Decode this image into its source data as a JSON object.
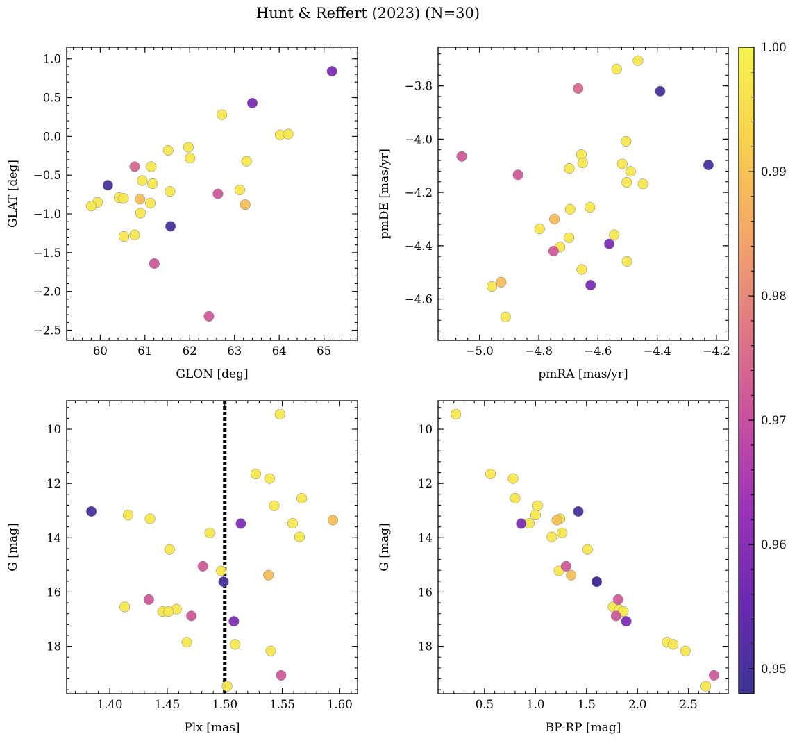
{
  "figure_title": "Hunt & Reffert (2023) (N=30)",
  "chart_data": [
    {
      "id": "glon-glat",
      "type": "scatter",
      "title": "",
      "xlabel": "GLON [deg]",
      "ylabel": "GLAT [deg]",
      "xlim": [
        59.25,
        65.75
      ],
      "ylim": [
        -2.63,
        1.15
      ],
      "xticks": [
        60,
        61,
        62,
        63,
        64,
        65
      ],
      "xtick_labels": [
        "60",
        "61",
        "62",
        "63",
        "64",
        "65"
      ],
      "yticks": [
        1.0,
        0.5,
        0.0,
        -0.5,
        -1.0,
        -1.5,
        -2.0,
        -2.5
      ],
      "ytick_labels": [
        "1.0",
        "0.5",
        "0.0",
        "−0.5",
        "−1.0",
        "−1.5",
        "−2.0",
        "−2.5"
      ],
      "points": [
        {
          "x": 65.18,
          "y": 0.84,
          "c": 0.958
        },
        {
          "x": 63.4,
          "y": 0.43,
          "c": 0.958
        },
        {
          "x": 62.72,
          "y": 0.28,
          "c": 0.997
        },
        {
          "x": 64.02,
          "y": 0.02,
          "c": 0.997
        },
        {
          "x": 64.2,
          "y": 0.03,
          "c": 0.997
        },
        {
          "x": 61.52,
          "y": -0.18,
          "c": 0.997
        },
        {
          "x": 61.97,
          "y": -0.14,
          "c": 0.997
        },
        {
          "x": 62.01,
          "y": -0.28,
          "c": 0.997
        },
        {
          "x": 63.27,
          "y": -0.32,
          "c": 0.997
        },
        {
          "x": 60.77,
          "y": -0.39,
          "c": 0.974
        },
        {
          "x": 61.14,
          "y": -0.39,
          "c": 0.997
        },
        {
          "x": 60.17,
          "y": -0.63,
          "c": 0.95
        },
        {
          "x": 60.94,
          "y": -0.57,
          "c": 0.997
        },
        {
          "x": 61.17,
          "y": -0.61,
          "c": 0.997
        },
        {
          "x": 61.56,
          "y": -0.71,
          "c": 0.997
        },
        {
          "x": 62.63,
          "y": -0.74,
          "c": 0.972
        },
        {
          "x": 63.12,
          "y": -0.69,
          "c": 0.997
        },
        {
          "x": 60.42,
          "y": -0.79,
          "c": 0.997
        },
        {
          "x": 60.52,
          "y": -0.8,
          "c": 0.997
        },
        {
          "x": 60.89,
          "y": -0.81,
          "c": 0.989
        },
        {
          "x": 59.94,
          "y": -0.85,
          "c": 0.997
        },
        {
          "x": 61.12,
          "y": -0.86,
          "c": 0.997
        },
        {
          "x": 63.24,
          "y": -0.88,
          "c": 0.989
        },
        {
          "x": 59.8,
          "y": -0.9,
          "c": 0.997
        },
        {
          "x": 60.9,
          "y": -0.99,
          "c": 0.997
        },
        {
          "x": 61.57,
          "y": -1.16,
          "c": 0.95
        },
        {
          "x": 60.53,
          "y": -1.29,
          "c": 0.997
        },
        {
          "x": 60.77,
          "y": -1.27,
          "c": 0.997
        },
        {
          "x": 61.21,
          "y": -1.64,
          "c": 0.972
        },
        {
          "x": 62.43,
          "y": -2.32,
          "c": 0.972
        }
      ]
    },
    {
      "id": "pmra-pmde",
      "type": "scatter",
      "title": "",
      "xlabel": "pmRA [mas/yr]",
      "ylabel": "pmDE [mas/yr]",
      "xlim": [
        -5.14,
        -4.16
      ],
      "ylim": [
        -4.755,
        -3.655
      ],
      "xticks": [
        -5.0,
        -4.8,
        -4.6,
        -4.4,
        -4.2
      ],
      "xtick_labels": [
        "−5.0",
        "−4.8",
        "−4.6",
        "−4.4",
        "−4.2"
      ],
      "yticks": [
        -3.8,
        -4.0,
        -4.2,
        -4.4,
        -4.6
      ],
      "ytick_labels": [
        "−3.8",
        "−4.0",
        "−4.2",
        "−4.4",
        "−4.6"
      ],
      "points": [
        {
          "x": -4.465,
          "y": -3.705,
          "c": 0.997
        },
        {
          "x": -4.537,
          "y": -3.737,
          "c": 0.997
        },
        {
          "x": -4.667,
          "y": -3.81,
          "c": 0.975
        },
        {
          "x": -4.39,
          "y": -3.82,
          "c": 0.95
        },
        {
          "x": -4.505,
          "y": -4.008,
          "c": 0.997
        },
        {
          "x": -5.06,
          "y": -4.065,
          "c": 0.972
        },
        {
          "x": -4.656,
          "y": -4.058,
          "c": 0.997
        },
        {
          "x": -4.652,
          "y": -4.089,
          "c": 0.997
        },
        {
          "x": -4.518,
          "y": -4.093,
          "c": 0.997
        },
        {
          "x": -4.227,
          "y": -4.097,
          "c": 0.95
        },
        {
          "x": -4.697,
          "y": -4.11,
          "c": 0.997
        },
        {
          "x": -4.49,
          "y": -4.121,
          "c": 0.997
        },
        {
          "x": -4.87,
          "y": -4.134,
          "c": 0.972
        },
        {
          "x": -4.503,
          "y": -4.162,
          "c": 0.997
        },
        {
          "x": -4.448,
          "y": -4.168,
          "c": 0.997
        },
        {
          "x": -4.627,
          "y": -4.256,
          "c": 0.997
        },
        {
          "x": -4.694,
          "y": -4.263,
          "c": 0.997
        },
        {
          "x": -4.747,
          "y": -4.3,
          "c": 0.989
        },
        {
          "x": -4.797,
          "y": -4.337,
          "c": 0.997
        },
        {
          "x": -4.545,
          "y": -4.359,
          "c": 0.997
        },
        {
          "x": -4.698,
          "y": -4.37,
          "c": 0.997
        },
        {
          "x": -4.562,
          "y": -4.393,
          "c": 0.958
        },
        {
          "x": -4.728,
          "y": -4.405,
          "c": 0.997
        },
        {
          "x": -4.75,
          "y": -4.42,
          "c": 0.972
        },
        {
          "x": -4.502,
          "y": -4.459,
          "c": 0.997
        },
        {
          "x": -4.655,
          "y": -4.489,
          "c": 0.997
        },
        {
          "x": -4.927,
          "y": -4.537,
          "c": 0.989
        },
        {
          "x": -4.625,
          "y": -4.548,
          "c": 0.958
        },
        {
          "x": -4.958,
          "y": -4.553,
          "c": 0.997
        },
        {
          "x": -4.912,
          "y": -4.667,
          "c": 0.997
        }
      ]
    },
    {
      "id": "plx-g",
      "type": "scatter",
      "title": "",
      "xlabel": "Plx [mas]",
      "ylabel": "G [mag]",
      "xlim": [
        1.3625,
        1.6155
      ],
      "ylim": [
        19.75,
        8.95
      ],
      "xticks": [
        1.4,
        1.45,
        1.5,
        1.55,
        1.6
      ],
      "xtick_labels": [
        "1.40",
        "1.45",
        "1.50",
        "1.55",
        "1.60"
      ],
      "yticks": [
        10,
        12,
        14,
        16,
        18
      ],
      "ytick_labels": [
        "10",
        "12",
        "14",
        "16",
        "18"
      ],
      "vline": {
        "x": 1.5,
        "style": "dotted"
      },
      "points": [
        {
          "x": 1.548,
          "y": 9.45,
          "c": 0.997
        },
        {
          "x": 1.527,
          "y": 11.65,
          "c": 0.997
        },
        {
          "x": 1.539,
          "y": 11.82,
          "c": 0.997
        },
        {
          "x": 1.567,
          "y": 12.55,
          "c": 0.997
        },
        {
          "x": 1.543,
          "y": 12.82,
          "c": 0.997
        },
        {
          "x": 1.384,
          "y": 13.03,
          "c": 0.95
        },
        {
          "x": 1.416,
          "y": 13.16,
          "c": 0.997
        },
        {
          "x": 1.435,
          "y": 13.3,
          "c": 0.997
        },
        {
          "x": 1.594,
          "y": 13.35,
          "c": 0.989
        },
        {
          "x": 1.559,
          "y": 13.47,
          "c": 0.997
        },
        {
          "x": 1.514,
          "y": 13.48,
          "c": 0.958
        },
        {
          "x": 1.487,
          "y": 13.82,
          "c": 0.997
        },
        {
          "x": 1.565,
          "y": 13.97,
          "c": 0.997
        },
        {
          "x": 1.452,
          "y": 14.43,
          "c": 0.997
        },
        {
          "x": 1.481,
          "y": 15.05,
          "c": 0.972
        },
        {
          "x": 1.497,
          "y": 15.22,
          "c": 0.997
        },
        {
          "x": 1.538,
          "y": 15.38,
          "c": 0.989
        },
        {
          "x": 1.499,
          "y": 15.62,
          "c": 0.95
        },
        {
          "x": 1.434,
          "y": 16.28,
          "c": 0.972
        },
        {
          "x": 1.413,
          "y": 16.55,
          "c": 0.997
        },
        {
          "x": 1.458,
          "y": 16.63,
          "c": 0.997
        },
        {
          "x": 1.446,
          "y": 16.72,
          "c": 0.997
        },
        {
          "x": 1.451,
          "y": 16.72,
          "c": 0.997
        },
        {
          "x": 1.471,
          "y": 16.88,
          "c": 0.972
        },
        {
          "x": 1.508,
          "y": 17.08,
          "c": 0.958
        },
        {
          "x": 1.467,
          "y": 17.85,
          "c": 0.997
        },
        {
          "x": 1.509,
          "y": 17.93,
          "c": 0.997
        },
        {
          "x": 1.54,
          "y": 18.17,
          "c": 0.997
        },
        {
          "x": 1.549,
          "y": 19.07,
          "c": 0.972
        },
        {
          "x": 1.502,
          "y": 19.47,
          "c": 0.997
        }
      ]
    },
    {
      "id": "bprp-g",
      "type": "scatter",
      "title": "",
      "xlabel": "BP-RP [mag]",
      "ylabel": "G [mag]",
      "xlim": [
        0.045,
        2.89
      ],
      "ylim": [
        19.75,
        8.95
      ],
      "xticks": [
        0.5,
        1.0,
        1.5,
        2.0,
        2.5
      ],
      "xtick_labels": [
        "0.5",
        "1.0",
        "1.5",
        "2.0",
        "2.5"
      ],
      "yticks": [
        10,
        12,
        14,
        16,
        18
      ],
      "ytick_labels": [
        "10",
        "12",
        "14",
        "16",
        "18"
      ],
      "points": [
        {
          "x": 0.22,
          "y": 9.45,
          "c": 0.997
        },
        {
          "x": 0.56,
          "y": 11.65,
          "c": 0.997
        },
        {
          "x": 0.78,
          "y": 11.82,
          "c": 0.997
        },
        {
          "x": 0.8,
          "y": 12.55,
          "c": 0.997
        },
        {
          "x": 1.02,
          "y": 12.82,
          "c": 0.997
        },
        {
          "x": 1.42,
          "y": 13.03,
          "c": 0.95
        },
        {
          "x": 1.0,
          "y": 13.16,
          "c": 0.997
        },
        {
          "x": 1.24,
          "y": 13.3,
          "c": 0.997
        },
        {
          "x": 1.21,
          "y": 13.35,
          "c": 0.989
        },
        {
          "x": 0.86,
          "y": 13.48,
          "c": 0.958
        },
        {
          "x": 0.94,
          "y": 13.47,
          "c": 0.997
        },
        {
          "x": 1.26,
          "y": 13.82,
          "c": 0.997
        },
        {
          "x": 1.16,
          "y": 13.97,
          "c": 0.997
        },
        {
          "x": 1.51,
          "y": 14.43,
          "c": 0.997
        },
        {
          "x": 1.3,
          "y": 15.05,
          "c": 0.972
        },
        {
          "x": 1.23,
          "y": 15.22,
          "c": 0.997
        },
        {
          "x": 1.35,
          "y": 15.38,
          "c": 0.989
        },
        {
          "x": 1.6,
          "y": 15.62,
          "c": 0.95
        },
        {
          "x": 1.81,
          "y": 16.28,
          "c": 0.972
        },
        {
          "x": 1.76,
          "y": 16.55,
          "c": 0.997
        },
        {
          "x": 1.82,
          "y": 16.65,
          "c": 0.997
        },
        {
          "x": 1.86,
          "y": 16.72,
          "c": 0.997
        },
        {
          "x": 1.79,
          "y": 16.88,
          "c": 0.972
        },
        {
          "x": 1.89,
          "y": 17.08,
          "c": 0.958
        },
        {
          "x": 2.29,
          "y": 17.85,
          "c": 0.997
        },
        {
          "x": 2.35,
          "y": 17.93,
          "c": 0.997
        },
        {
          "x": 2.47,
          "y": 18.17,
          "c": 0.997
        },
        {
          "x": 2.75,
          "y": 19.07,
          "c": 0.972
        },
        {
          "x": 2.67,
          "y": 19.47,
          "c": 0.997
        },
        {
          "x": 1.6,
          "y": 15.62,
          "c": 0.95
        }
      ]
    }
  ],
  "colorbar": {
    "range": [
      0.948,
      1.0
    ],
    "ticks": [
      0.95,
      0.96,
      0.97,
      0.98,
      0.99,
      1.0
    ],
    "tick_labels": [
      "0.95",
      "0.96",
      "0.97",
      "0.98",
      "0.99",
      "1.00"
    ],
    "colormap": "plasma",
    "stops": [
      "#3d3494",
      "#6a2ab0",
      "#9a33b8",
      "#c9519e",
      "#e07a83",
      "#f3a868",
      "#f9d24c",
      "#f5f54f"
    ]
  }
}
